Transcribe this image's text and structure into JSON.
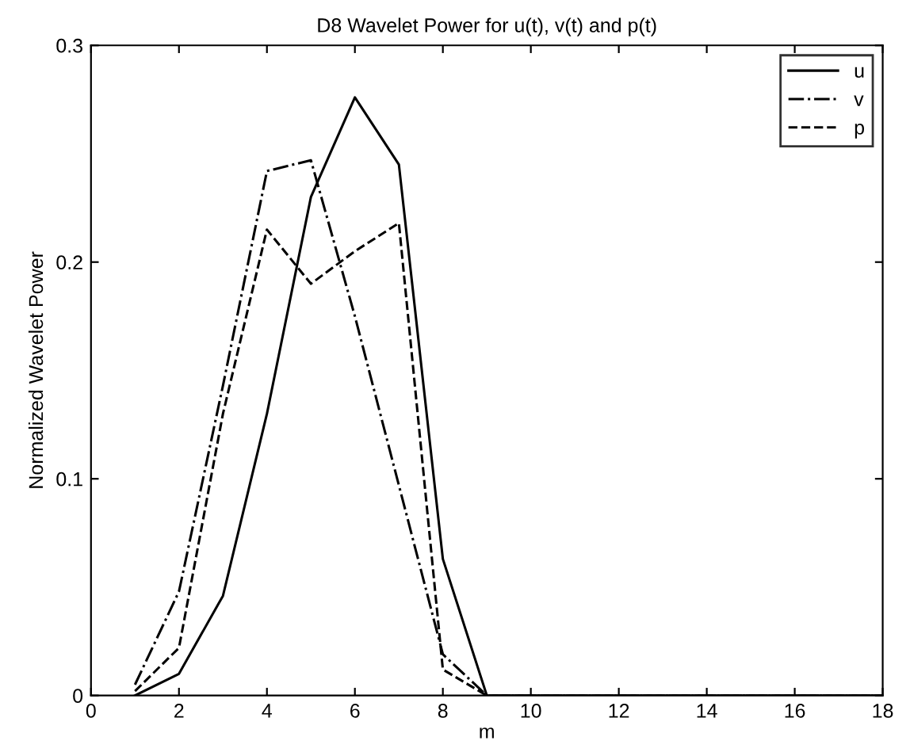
{
  "chart_data": {
    "type": "line",
    "title": "D8 Wavelet Power for u(t), v(t) and p(t)",
    "xlabel": "m",
    "ylabel": "Normalized Wavelet Power",
    "x": [
      1,
      2,
      3,
      4,
      5,
      6,
      7,
      8,
      9,
      10,
      11,
      12,
      13,
      14,
      15,
      16,
      17,
      18
    ],
    "series": [
      {
        "name": "u",
        "color": "#000000",
        "line_style": "solid",
        "values": [
          0,
          0.01,
          0.046,
          0.13,
          0.23,
          0.276,
          0.245,
          0.063,
          0,
          0,
          0,
          0,
          0,
          0,
          0,
          0,
          0,
          0
        ]
      },
      {
        "name": "v",
        "color": "#000000",
        "line_style": "dashdot",
        "values": [
          0.005,
          0.048,
          0.143,
          0.242,
          0.247,
          0.175,
          0.097,
          0.019,
          0,
          0,
          0,
          0,
          0,
          0,
          0,
          0,
          0,
          0
        ]
      },
      {
        "name": "p",
        "color": "#000000",
        "line_style": "dashed",
        "values": [
          0.002,
          0.022,
          0.13,
          0.215,
          0.19,
          0.205,
          0.218,
          0.012,
          0,
          0,
          0,
          0,
          0,
          0,
          0,
          0,
          0,
          0
        ]
      }
    ],
    "xlim": [
      0,
      18
    ],
    "xticks": [
      0,
      2,
      4,
      6,
      8,
      10,
      12,
      14,
      16,
      18
    ],
    "ylim": [
      0,
      0.3
    ],
    "yticks": [
      0,
      0.1,
      0.2,
      0.3
    ],
    "grid": false,
    "legend": "top right",
    "marker": "none"
  }
}
